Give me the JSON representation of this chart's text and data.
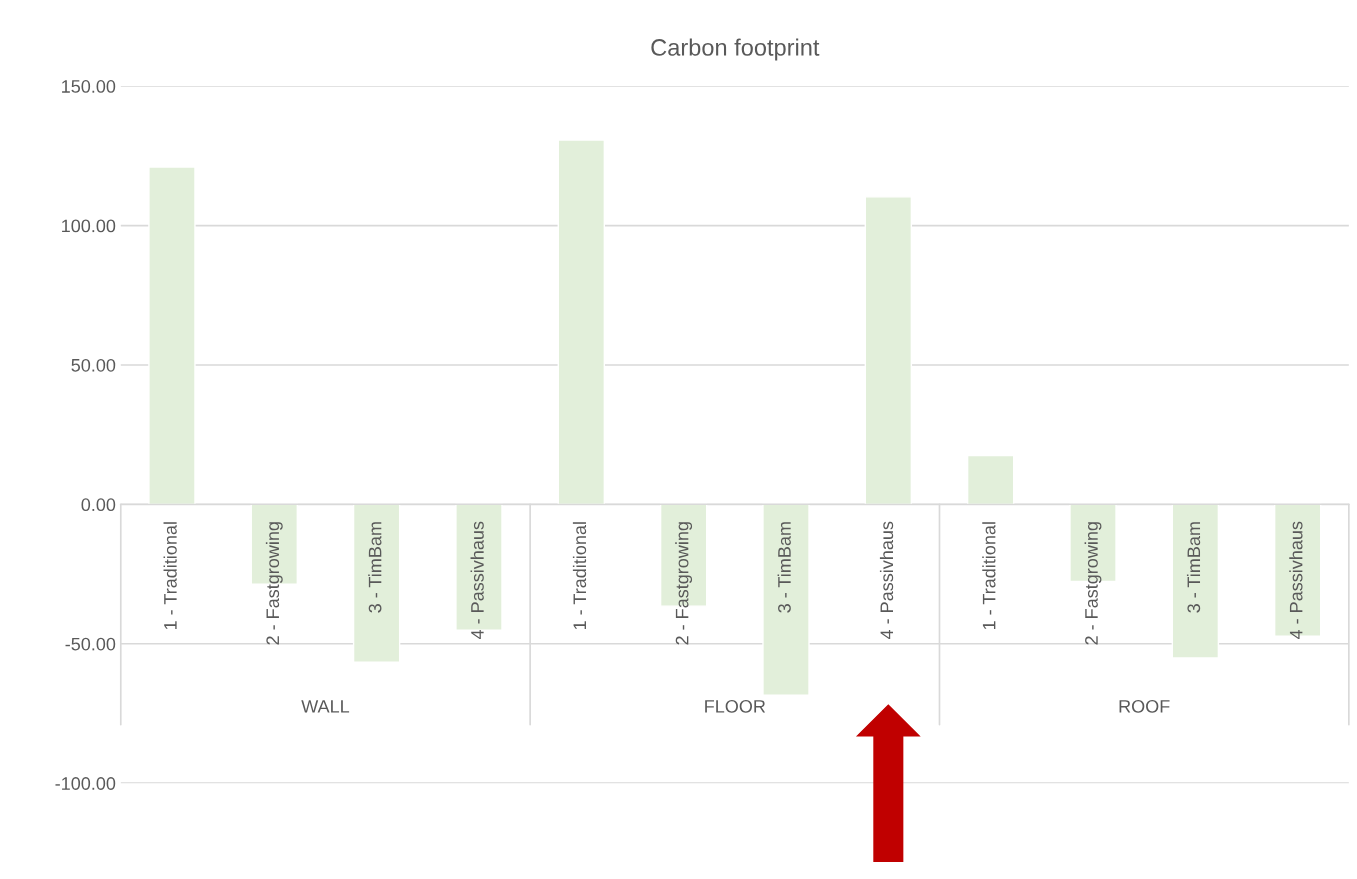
{
  "chart_data": {
    "type": "bar",
    "title": "Carbon footprint",
    "categories": [
      "1 - Traditional",
      "2 - Fastgrowing",
      "3 - TimBam",
      "4 - Passivhaus",
      "1 - Traditional",
      "2 - Fastgrowing",
      "3 - TimBam",
      "4 - Passivhaus",
      "1 - Traditional",
      "2 - Fastgrowing",
      "3 - TimBam",
      "4 - Passivhaus"
    ],
    "values": [
      121.0,
      -28.6,
      -56.6,
      -45.1,
      130.7,
      -36.5,
      -68.4,
      110.3,
      17.5,
      -27.6,
      -55.1,
      -47.3
    ],
    "color": "#e2efda",
    "annotations": [
      "WALL",
      "FLOOR",
      "ROOF"
    ],
    "ylim": [
      -100,
      150
    ],
    "yticks": [
      {
        "value": -100,
        "label": "-100.00"
      },
      {
        "value": -50,
        "label": "-50.00"
      },
      {
        "value": 0,
        "label": "0.00"
      },
      {
        "value": 50,
        "label": "50.00"
      },
      {
        "value": 100,
        "label": "100.00"
      },
      {
        "value": 150,
        "label": "150.00"
      }
    ],
    "grid": "y",
    "legend": false
  }
}
